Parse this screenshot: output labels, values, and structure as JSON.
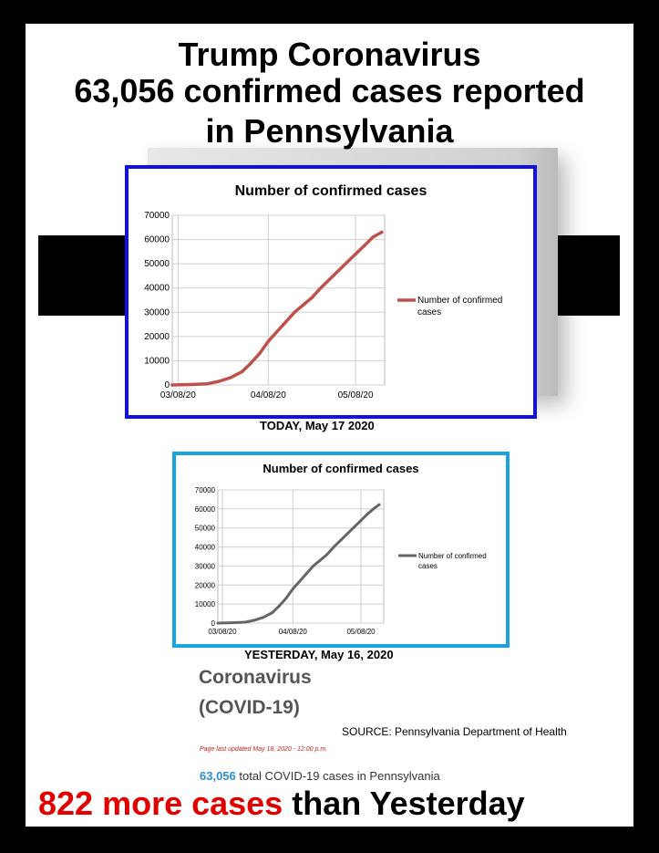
{
  "headline": {
    "line1": "Trump Coronavirus",
    "line2": "63,056 confirmed cases reported",
    "line3": "in Pennsylvania"
  },
  "captions": {
    "today": "TODAY, May 17 2020",
    "yesterday": "YESTERDAY, May 16, 2020"
  },
  "source_block": {
    "title_line1": "Coronavirus",
    "title_line2": "(COVID-19)",
    "source": "SOURCE: Pennsylvania Department of Health",
    "updated": "Page last updated May 18, 2020 - 12:00 p.m.",
    "total_number": "63,056",
    "total_text": " total COVID-19 cases in Pennsylvania"
  },
  "bottom_line": {
    "red_part": "822 more cases",
    "black_part": " than Yesterday"
  },
  "colors": {
    "chart1_frame": "#1010e6",
    "chart2_frame": "#1aa3dd",
    "series1": "#c0504d",
    "series2": "#666666"
  },
  "chart_data": [
    {
      "type": "line",
      "title": "Number of confirmed cases",
      "x_ticks": [
        "03/08/20",
        "04/08/20",
        "05/08/20"
      ],
      "y_ticks": [
        0,
        10000,
        20000,
        30000,
        40000,
        50000,
        60000,
        70000
      ],
      "ylim": [
        0,
        70000
      ],
      "legend": "right",
      "grid": true,
      "series": [
        {
          "name": "Number of confirmed cases",
          "x": [
            "03/06/20",
            "03/12/20",
            "03/18/20",
            "03/22/20",
            "03/26/20",
            "03/30/20",
            "04/02/20",
            "04/05/20",
            "04/08/20",
            "04/11/20",
            "04/14/20",
            "04/17/20",
            "04/20/20",
            "04/23/20",
            "04/26/20",
            "04/29/20",
            "05/02/20",
            "05/05/20",
            "05/08/20",
            "05/11/20",
            "05/14/20",
            "05/17/20"
          ],
          "values": [
            0,
            200,
            500,
            1500,
            3000,
            5500,
            9000,
            13000,
            18000,
            22000,
            26000,
            30000,
            33000,
            36000,
            40000,
            43500,
            47000,
            50500,
            54000,
            57500,
            61000,
            63056
          ]
        }
      ]
    },
    {
      "type": "line",
      "title": "Number of confirmed cases",
      "x_ticks": [
        "03/08/20",
        "04/08/20",
        "05/08/20"
      ],
      "y_ticks": [
        0,
        10000,
        20000,
        30000,
        40000,
        50000,
        60000,
        70000
      ],
      "ylim": [
        0,
        70000
      ],
      "legend": "right",
      "grid": true,
      "series": [
        {
          "name": "Number of confirmed cases",
          "x": [
            "03/06/20",
            "03/12/20",
            "03/18/20",
            "03/22/20",
            "03/26/20",
            "03/30/20",
            "04/02/20",
            "04/05/20",
            "04/08/20",
            "04/11/20",
            "04/14/20",
            "04/17/20",
            "04/20/20",
            "04/23/20",
            "04/26/20",
            "04/29/20",
            "05/02/20",
            "05/05/20",
            "05/08/20",
            "05/11/20",
            "05/14/20",
            "05/16/20"
          ],
          "values": [
            0,
            200,
            500,
            1500,
            3000,
            5500,
            9000,
            13000,
            18000,
            22000,
            26000,
            30000,
            33000,
            36000,
            40000,
            43500,
            47000,
            50500,
            54000,
            57500,
            60500,
            62234
          ]
        }
      ]
    }
  ]
}
